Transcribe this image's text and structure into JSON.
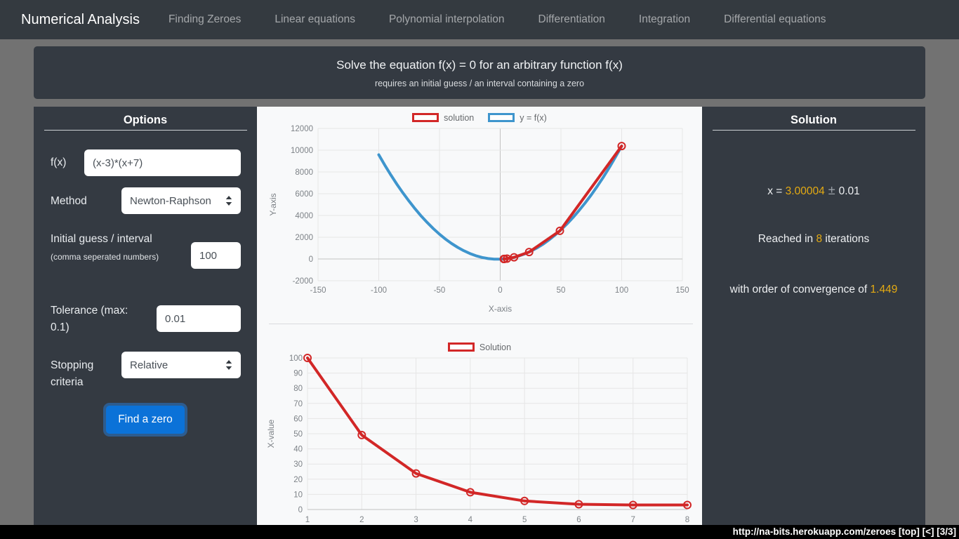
{
  "navbar": {
    "brand": "Numerical Analysis",
    "items": [
      "Finding Zeroes",
      "Linear equations",
      "Polynomial interpolation",
      "Differentiation",
      "Integration",
      "Differential equations"
    ]
  },
  "jumbotron": {
    "title": "Solve the equation f(x) = 0 for an arbitrary function f(x)",
    "subtitle": "requires an initial guess / an interval containing a zero"
  },
  "options": {
    "heading": "Options",
    "fx_label": "f(x)",
    "fx_value": "(x-3)*(x+7)",
    "method_label": "Method",
    "method_value": "Newton-Raphson",
    "guess_label": "Initial guess / interval",
    "guess_note": "(comma seperated numbers)",
    "guess_value": "100",
    "tolerance_label": "Tolerance (max: 0.1)",
    "tolerance_value": "0.01",
    "stopping_label": "Stopping criteria",
    "stopping_value": "Relative",
    "button_label": "Find a zero"
  },
  "solution": {
    "heading": "Solution",
    "line1_prefix": "x = ",
    "x_value": "3.00004",
    "line1_pm": " ± ",
    "line1_suffix": "0.01",
    "line2_prefix": "Reached in ",
    "iterations": "8",
    "line2_suffix": " iterations",
    "line3_prefix": "with order of convergence of ",
    "convergence": "1.449"
  },
  "statusbar": {
    "text": "http://na-bits.herokuapp.com/zeroes [top] [<] [3/3]"
  },
  "colors": {
    "navbar_bg": "#343a40",
    "panel_bg": "#343a42",
    "page_bg": "#727272",
    "chart_bg": "#f8f9fa",
    "accent_gold": "#e4aa12",
    "button_blue": "#0b72d8",
    "series_red": "#d22727",
    "series_blue": "#3e95cd"
  },
  "chart_data": [
    {
      "type": "line",
      "title": "",
      "xlabel": "X-axis",
      "ylabel": "Y-axis",
      "xlim": [
        -150,
        150
      ],
      "ylim": [
        -2000,
        12000
      ],
      "xticks": [
        -150,
        -100,
        -50,
        0,
        50,
        100,
        150
      ],
      "yticks": [
        -2000,
        0,
        2000,
        4000,
        6000,
        8000,
        10000,
        12000
      ],
      "grid": true,
      "legend_position": "top",
      "series": [
        {
          "name": "solution",
          "color": "#d22727",
          "markers": true,
          "points": [
            [
              100,
              10379
            ],
            [
              49.1225,
              2588.51
            ],
            [
              23.8055,
              640.92
            ],
            [
              11.3875,
              154.22
            ],
            [
              5.6275,
              33.18
            ],
            [
              3.4525,
              4.73
            ],
            [
              3.0188,
              0.19
            ],
            [
              3.00004,
              0
            ]
          ]
        },
        {
          "name": "y = f(x)",
          "color": "#3e95cd",
          "markers": false,
          "points": [
            [
              -100,
              9579
            ],
            [
              -95,
              8624
            ],
            [
              -90,
              7719
            ],
            [
              -85,
              6864
            ],
            [
              -80,
              6059
            ],
            [
              -75,
              5304
            ],
            [
              -70,
              4599
            ],
            [
              -65,
              3944
            ],
            [
              -60,
              3339
            ],
            [
              -55,
              2784
            ],
            [
              -50,
              2279
            ],
            [
              -45,
              1824
            ],
            [
              -40,
              1419
            ],
            [
              -35,
              1064
            ],
            [
              -30,
              759
            ],
            [
              -25,
              504
            ],
            [
              -20,
              299
            ],
            [
              -15,
              144
            ],
            [
              -10,
              39
            ],
            [
              -5,
              -16
            ],
            [
              0,
              -21
            ],
            [
              5,
              24
            ],
            [
              10,
              119
            ],
            [
              15,
              264
            ],
            [
              20,
              459
            ],
            [
              25,
              704
            ],
            [
              30,
              999
            ],
            [
              35,
              1344
            ],
            [
              40,
              1739
            ],
            [
              45,
              2184
            ],
            [
              50,
              2679
            ],
            [
              55,
              3224
            ],
            [
              60,
              3819
            ],
            [
              65,
              4464
            ],
            [
              70,
              5159
            ],
            [
              75,
              5904
            ],
            [
              80,
              6699
            ],
            [
              85,
              7544
            ],
            [
              90,
              8439
            ],
            [
              95,
              9384
            ],
            [
              100,
              10379
            ]
          ]
        }
      ]
    },
    {
      "type": "line",
      "title": "",
      "xlabel": "",
      "ylabel": "X-value",
      "xlim": [
        1,
        8
      ],
      "ylim": [
        0,
        100
      ],
      "xticks": [
        1,
        2,
        3,
        4,
        5,
        6,
        7,
        8
      ],
      "yticks": [
        0,
        10,
        20,
        30,
        40,
        50,
        60,
        70,
        80,
        90,
        100
      ],
      "grid": true,
      "legend_position": "top",
      "series": [
        {
          "name": "Solution",
          "color": "#d22727",
          "markers": true,
          "points": [
            [
              1,
              100
            ],
            [
              2,
              49.1225
            ],
            [
              3,
              23.8055
            ],
            [
              4,
              11.3875
            ],
            [
              5,
              5.6275
            ],
            [
              6,
              3.4525
            ],
            [
              7,
              3.0188
            ],
            [
              8,
              3.00004
            ]
          ]
        }
      ]
    }
  ]
}
